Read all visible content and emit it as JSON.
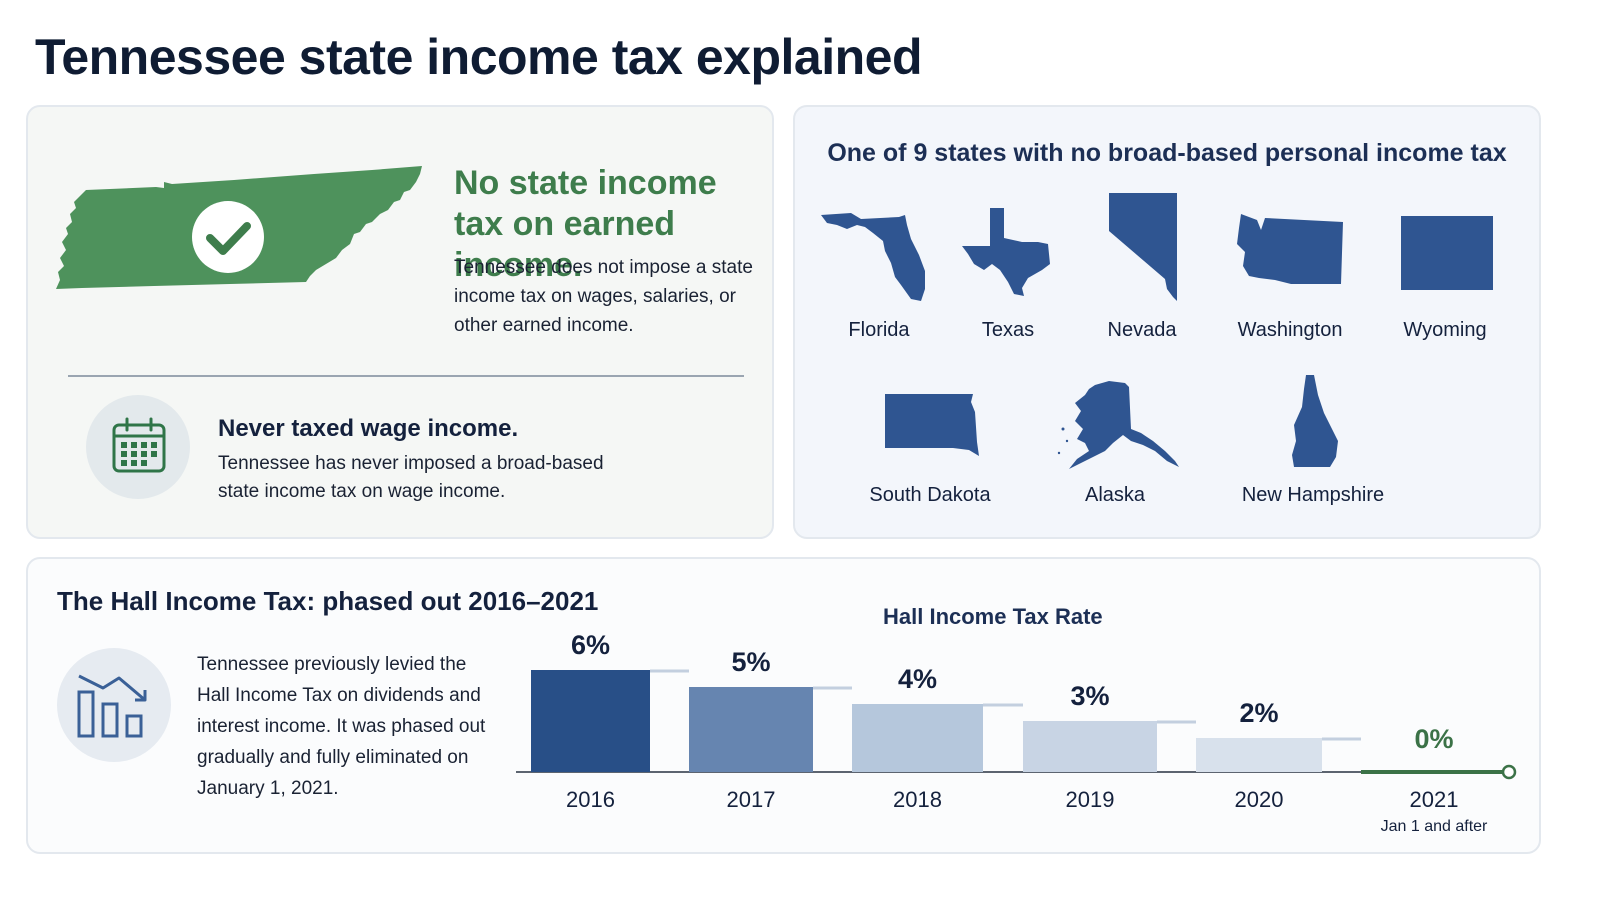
{
  "page": {
    "title": "Tennessee state income tax explained"
  },
  "no_tax_card": {
    "heading": "No state income tax on earned income.",
    "body": "Tennessee does not impose a state income tax on wages, salaries, or other earned income.",
    "map_icon": "tennessee-map-check-icon",
    "map_color": "#4e925c"
  },
  "never_taxed": {
    "icon": "calendar-icon",
    "heading": "Never taxed wage income.",
    "body": "Tennessee has never imposed a broad-based state income tax on wage income."
  },
  "states_card": {
    "heading": "One of 9 states with no broad-based personal income tax",
    "shape_color": "#2f5591",
    "states": [
      "Florida",
      "Texas",
      "Nevada",
      "Washington",
      "Wyoming",
      "South Dakota",
      "Alaska",
      "New Hampshire"
    ]
  },
  "hall_tax": {
    "heading": "The Hall Income Tax: phased out 2016–2021",
    "icon": "declining-bar-chart-icon",
    "body": "Tennessee previously levied the Hall Income Tax on dividends and interest income. It was phased out gradually and fully eliminated on January 1, 2021."
  },
  "chart_data": {
    "type": "bar",
    "title": "Hall Income Tax Rate",
    "categories": [
      "2016",
      "2017",
      "2018",
      "2019",
      "2020",
      "2021"
    ],
    "category_sublabels": [
      "",
      "",
      "",
      "",
      "",
      "Jan 1 and after"
    ],
    "values": [
      6,
      5,
      4,
      3,
      2,
      0
    ],
    "value_labels": [
      "6%",
      "5%",
      "4%",
      "3%",
      "2%",
      "0%"
    ],
    "unit": "%",
    "ylim": [
      0,
      6
    ],
    "grid": false,
    "bar_colors": [
      "#284f87",
      "#6685b0",
      "#b5c7dc",
      "#c8d4e4",
      "#d8e1ec",
      "#3b7247"
    ],
    "zero_label_color": "#3b7247"
  }
}
